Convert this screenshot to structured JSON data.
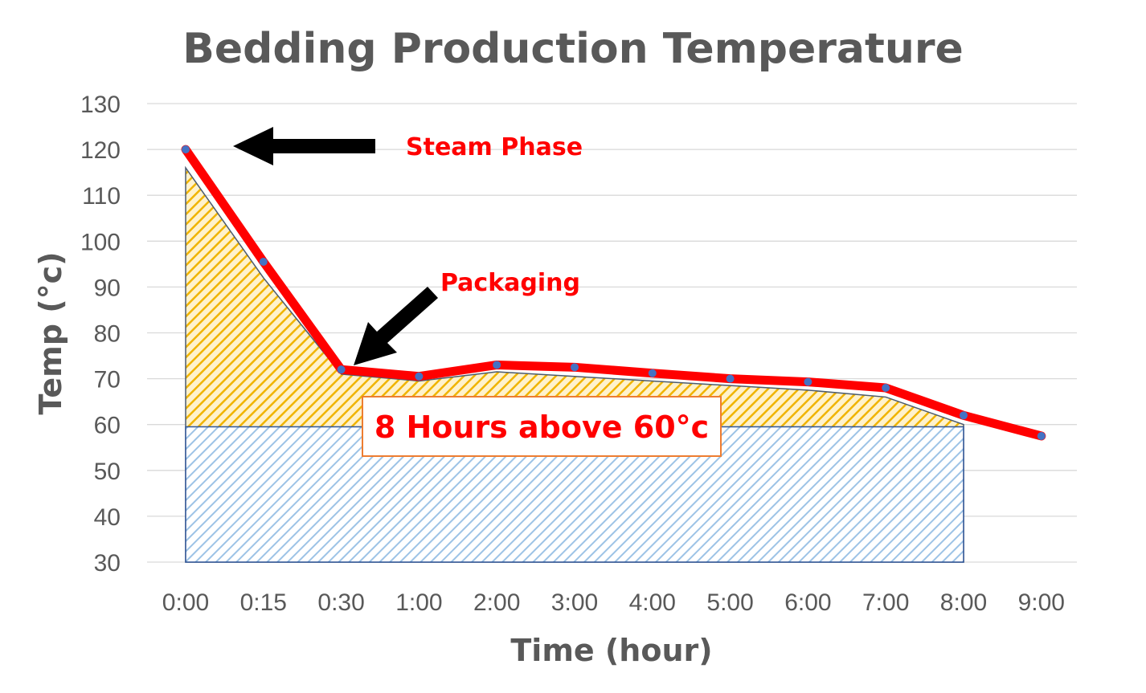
{
  "chart_data": {
    "type": "area",
    "title": "Bedding Production Temperature",
    "xlabel": "Time (hour)",
    "ylabel": "Temp (°c)",
    "ylim": [
      30,
      130
    ],
    "yticks": [
      30,
      40,
      50,
      60,
      70,
      80,
      90,
      100,
      110,
      120,
      130
    ],
    "categories": [
      "0:00",
      "0:15",
      "0:30",
      "1:00",
      "2:00",
      "3:00",
      "4:00",
      "5:00",
      "6:00",
      "7:00",
      "8:00",
      "9:00"
    ],
    "grid": true,
    "series": [
      {
        "type": "line",
        "color": "#ff0000",
        "marker_color": "#4472c4",
        "values": [
          120,
          95.5,
          72,
          70.5,
          73,
          72.5,
          71.2,
          70,
          69.3,
          68,
          62,
          57.5
        ]
      },
      {
        "type": "area",
        "pattern": "yellow-hatch",
        "color": "#ffc000",
        "values": [
          116,
          92,
          71,
          69.5,
          71.5,
          70.5,
          69.5,
          68.5,
          67.5,
          66,
          60,
          null
        ]
      },
      {
        "type": "area",
        "pattern": "blue-hatch",
        "color": "#9dc3e6",
        "values": [
          59.5,
          59.5,
          59.5,
          59.5,
          59.5,
          59.5,
          59.5,
          59.5,
          59.5,
          59.5,
          59.5,
          null
        ]
      }
    ],
    "annotations": {
      "steam": "Steam Phase",
      "packaging": "Packaging",
      "box": "8 Hours above 60°c"
    }
  }
}
